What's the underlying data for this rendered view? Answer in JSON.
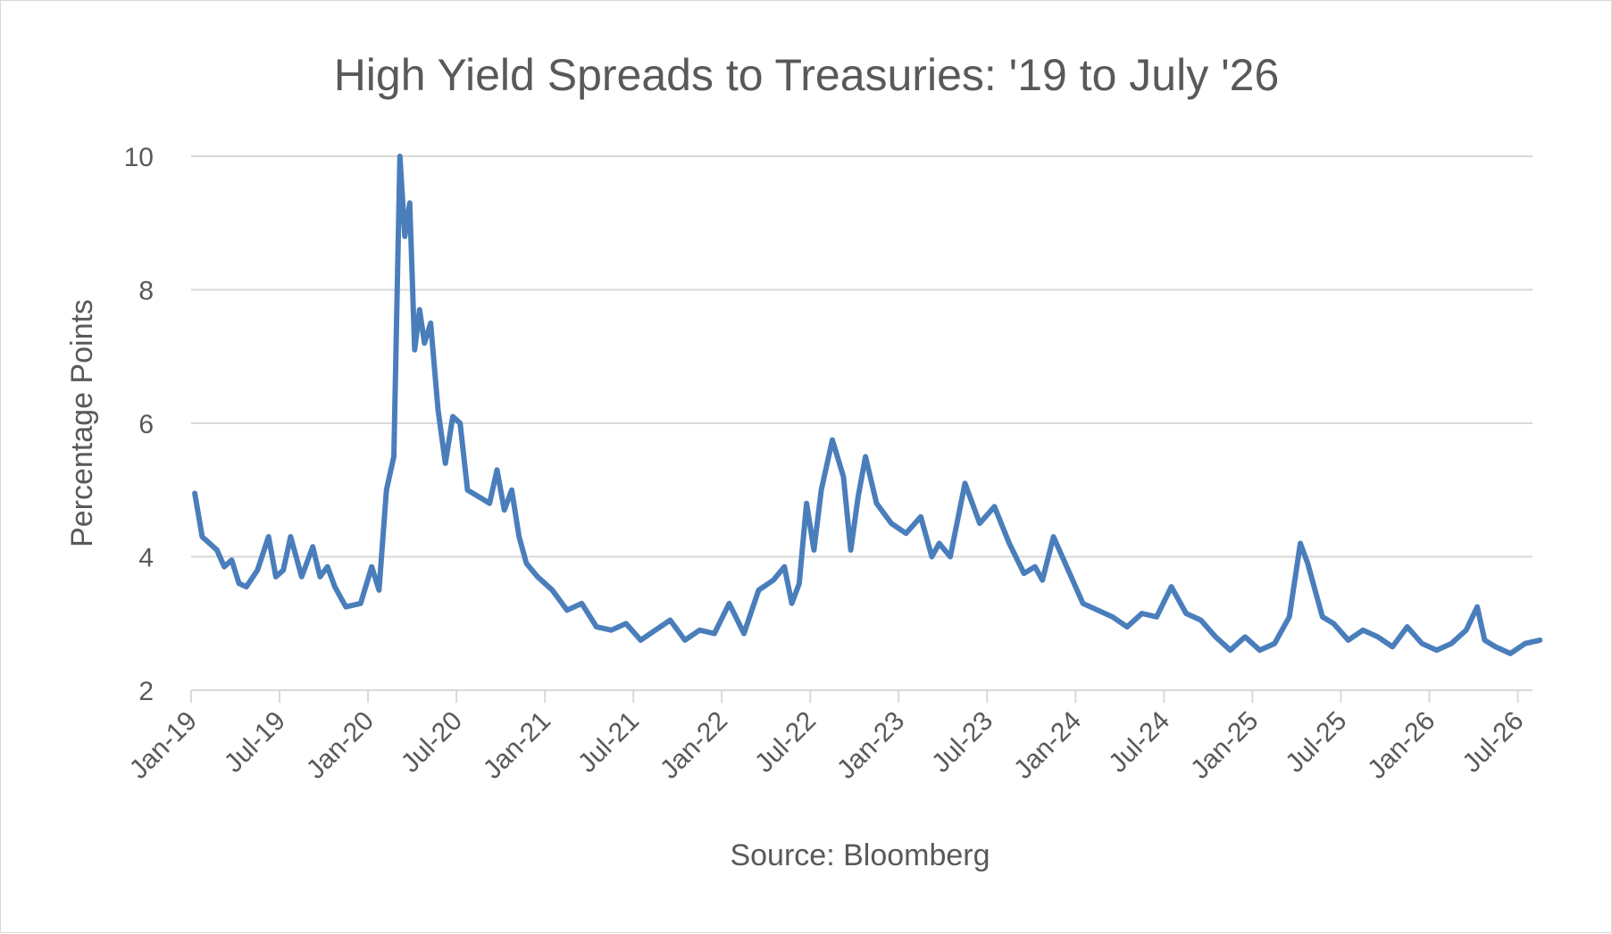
{
  "chart_data": {
    "type": "line",
    "title": "High Yield Spreads to Treasuries: '19 to July '26",
    "xlabel": "Source: Bloomberg",
    "ylabel": "Percentage Points",
    "ylim": [
      2,
      10
    ],
    "yticks": [
      "2",
      "4",
      "6",
      "8",
      "10"
    ],
    "xlim": [
      "2019-01",
      "2026-08"
    ],
    "xticks": [
      "Jan-19",
      "Jul-19",
      "Jan-20",
      "Jul-20",
      "Jan-21",
      "Jul-21",
      "Jan-22",
      "Jul-22",
      "Jan-23",
      "Jul-23",
      "Jan-24",
      "Jul-24",
      "Jan-25",
      "Jul-25",
      "Jan-26",
      "Jul-26"
    ],
    "grid": true,
    "legend": "none",
    "line_color": "#4a7ebb",
    "series": [
      {
        "x": [
          "2019-01",
          "2019-01",
          "2019-02",
          "2019-02",
          "2019-03",
          "2019-03",
          "2019-04",
          "2019-04",
          "2019-05",
          "2019-06",
          "2019-06",
          "2019-07",
          "2019-07",
          "2019-08",
          "2019-09",
          "2019-09",
          "2019-10",
          "2019-10",
          "2019-11",
          "2019-12",
          "2020-01",
          "2020-01",
          "2020-02",
          "2020-02",
          "2020-03",
          "2020-03",
          "2020-03",
          "2020-04",
          "2020-04",
          "2020-04",
          "2020-05",
          "2020-05",
          "2020-06",
          "2020-06",
          "2020-07",
          "2020-07",
          "2020-08",
          "2020-09",
          "2020-09",
          "2020-10",
          "2020-10",
          "2020-11",
          "2020-11",
          "2020-12",
          "2021-01",
          "2021-02",
          "2021-03",
          "2021-04",
          "2021-05",
          "2021-06",
          "2021-07",
          "2021-08",
          "2021-09",
          "2021-10",
          "2021-11",
          "2021-12",
          "2022-01",
          "2022-02",
          "2022-03",
          "2022-04",
          "2022-05",
          "2022-05",
          "2022-06",
          "2022-06",
          "2022-07",
          "2022-07",
          "2022-08",
          "2022-09",
          "2022-09",
          "2022-10",
          "2022-10",
          "2022-11",
          "2022-12",
          "2023-01",
          "2023-02",
          "2023-03",
          "2023-03",
          "2023-04",
          "2023-05",
          "2023-06",
          "2023-07",
          "2023-08",
          "2023-09",
          "2023-10",
          "2023-10",
          "2023-11",
          "2023-12",
          "2024-01",
          "2024-02",
          "2024-03",
          "2024-04",
          "2024-05",
          "2024-06",
          "2024-07",
          "2024-08",
          "2024-09",
          "2024-10",
          "2024-11",
          "2024-12",
          "2025-01",
          "2025-02",
          "2025-03",
          "2025-04",
          "2025-04",
          "2025-05",
          "2025-05",
          "2025-06",
          "2025-07",
          "2025-08",
          "2025-09",
          "2025-10",
          "2025-11",
          "2025-12",
          "2026-01",
          "2026-02",
          "2026-03",
          "2026-04",
          "2026-04",
          "2026-05",
          "2026-06",
          "2026-07",
          "2026-08"
        ],
        "values": [
          4.95,
          4.3,
          4.2,
          4.1,
          3.85,
          3.95,
          3.6,
          3.55,
          3.8,
          4.3,
          3.7,
          3.8,
          4.3,
          3.7,
          4.15,
          3.7,
          3.85,
          3.55,
          3.25,
          3.3,
          3.85,
          3.5,
          5.0,
          5.5,
          10.0,
          8.8,
          9.3,
          7.1,
          7.7,
          7.2,
          7.5,
          6.2,
          5.4,
          6.1,
          6.0,
          5.0,
          4.9,
          4.8,
          5.3,
          4.7,
          5.0,
          4.3,
          3.9,
          3.7,
          3.5,
          3.2,
          3.3,
          2.95,
          2.9,
          3.0,
          2.75,
          2.9,
          3.05,
          2.75,
          2.9,
          2.85,
          3.3,
          2.85,
          3.5,
          3.65,
          3.85,
          3.3,
          3.6,
          4.8,
          4.1,
          5.0,
          5.75,
          5.2,
          4.1,
          4.9,
          5.5,
          4.8,
          4.5,
          4.35,
          4.6,
          4.0,
          4.2,
          4.0,
          5.1,
          4.5,
          4.75,
          4.2,
          3.75,
          3.85,
          3.65,
          4.3,
          3.8,
          3.3,
          3.2,
          3.1,
          2.95,
          3.15,
          3.1,
          3.55,
          3.15,
          3.05,
          2.8,
          2.6,
          2.8,
          2.6,
          2.7,
          3.1,
          4.2,
          3.9,
          3.5,
          3.1,
          3.0,
          2.75,
          2.9,
          2.8,
          2.65,
          2.95,
          2.7,
          2.6,
          2.7,
          2.9,
          3.25,
          2.75,
          2.65,
          2.55,
          2.7,
          2.75
        ]
      }
    ]
  }
}
